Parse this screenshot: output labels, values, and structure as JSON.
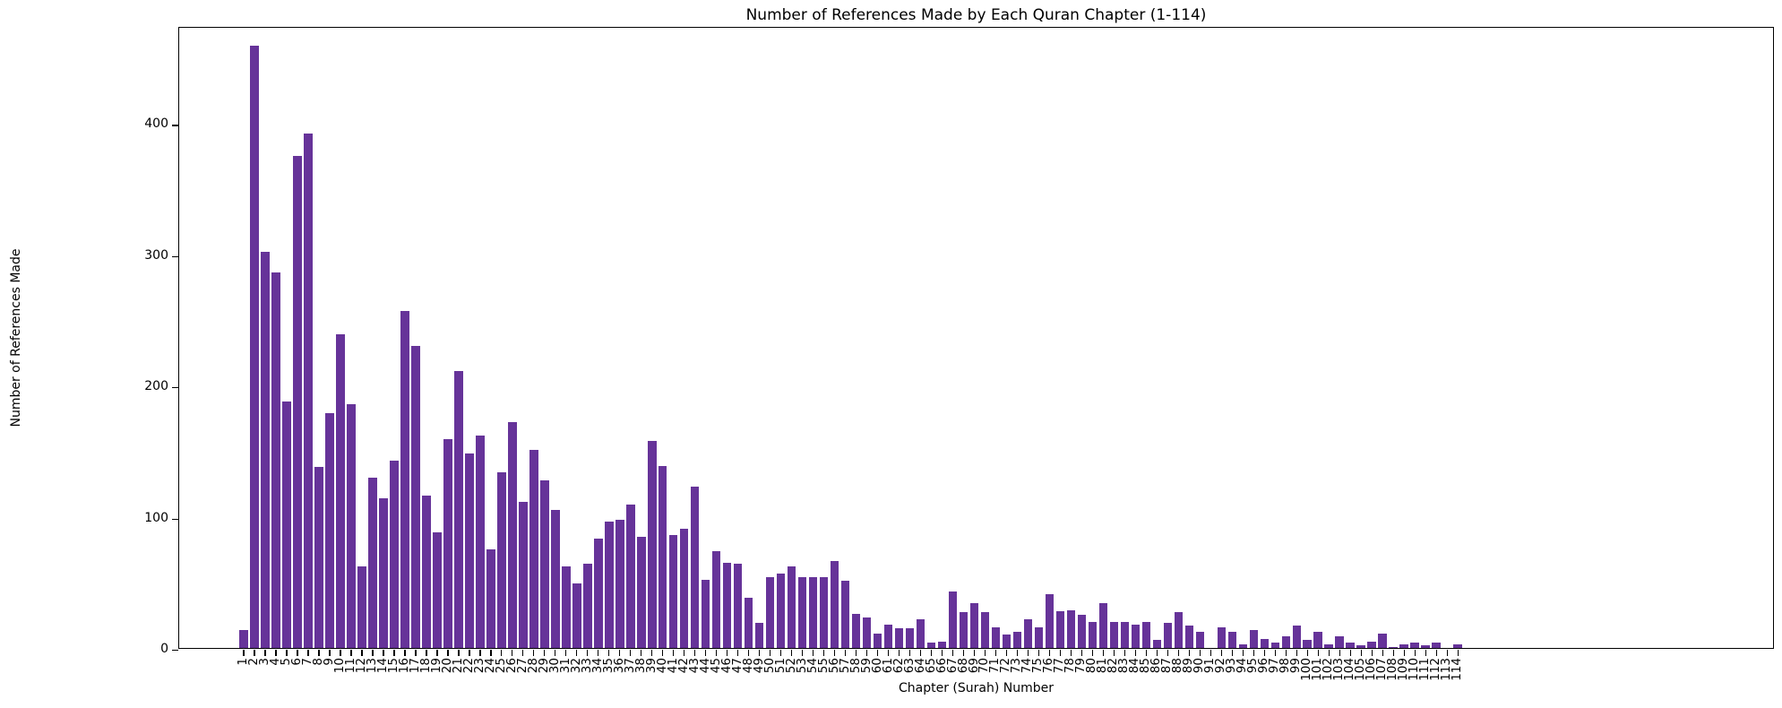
{
  "chart_data": {
    "type": "bar",
    "title": "Number of References Made by Each Quran Chapter (1-114)",
    "xlabel": "Chapter (Surah) Number",
    "ylabel": "Number of References Made",
    "ylim": [
      0,
      474
    ],
    "yticks": [
      0,
      100,
      200,
      300,
      400
    ],
    "grid": false,
    "legend": null,
    "bar_color": "#663399",
    "categories": [
      "1",
      "2",
      "3",
      "4",
      "5",
      "6",
      "7",
      "8",
      "9",
      "10",
      "11",
      "12",
      "13",
      "14",
      "15",
      "16",
      "17",
      "18",
      "19",
      "20",
      "21",
      "22",
      "23",
      "24",
      "25",
      "26",
      "27",
      "28",
      "29",
      "30",
      "31",
      "32",
      "33",
      "34",
      "35",
      "36",
      "37",
      "38",
      "39",
      "40",
      "41",
      "42",
      "43",
      "44",
      "45",
      "46",
      "47",
      "48",
      "49",
      "50",
      "51",
      "52",
      "53",
      "54",
      "55",
      "56",
      "57",
      "58",
      "59",
      "60",
      "61",
      "62",
      "63",
      "64",
      "65",
      "66",
      "67",
      "68",
      "69",
      "70",
      "71",
      "72",
      "73",
      "74",
      "75",
      "76",
      "77",
      "78",
      "79",
      "80",
      "81",
      "82",
      "83",
      "84",
      "85",
      "86",
      "87",
      "88",
      "89",
      "90",
      "91",
      "92",
      "93",
      "94",
      "95",
      "96",
      "97",
      "98",
      "99",
      "100",
      "101",
      "102",
      "103",
      "104",
      "105",
      "106",
      "107",
      "108",
      "109",
      "110",
      "111",
      "112",
      "113",
      "114"
    ],
    "values": [
      14,
      459,
      302,
      286,
      188,
      375,
      392,
      138,
      179,
      239,
      186,
      62,
      130,
      114,
      143,
      257,
      230,
      116,
      88,
      159,
      211,
      148,
      162,
      75,
      134,
      172,
      111,
      151,
      128,
      105,
      62,
      49,
      64,
      83,
      96,
      98,
      109,
      85,
      158,
      139,
      86,
      91,
      123,
      52,
      74,
      65,
      64,
      38,
      19,
      54,
      57,
      62,
      54,
      54,
      54,
      66,
      51,
      26,
      23,
      11,
      18,
      15,
      15,
      22,
      4,
      5,
      43,
      27,
      34,
      27,
      16,
      10,
      12,
      22,
      16,
      41,
      28,
      29,
      25,
      20,
      34,
      20,
      20,
      18,
      20,
      6,
      19,
      27,
      17,
      12,
      0,
      16,
      12,
      3,
      14,
      7,
      4,
      9,
      17,
      6,
      12,
      3,
      9,
      4,
      2,
      5,
      11,
      1,
      3,
      4,
      2,
      4,
      0,
      3
    ]
  }
}
